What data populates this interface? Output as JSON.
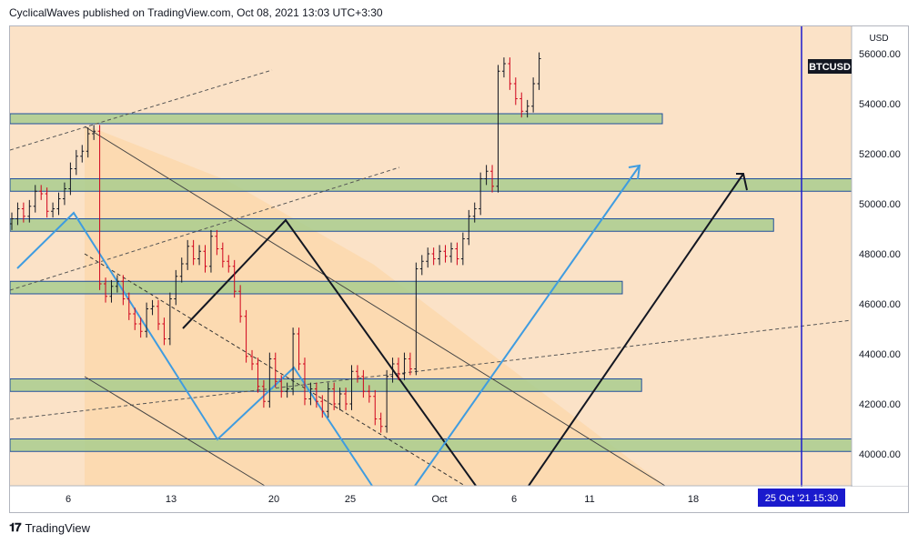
{
  "header": {
    "publish_line": "CyclicalWaves published on TradingView.com, Oct 08, 2021 13:03 UTC+3:30"
  },
  "footer": {
    "brand": "TradingView",
    "logo_icon": "tradingview-logo-icon"
  },
  "colors": {
    "background": "#fbe2c7",
    "triangle": "#fcd9ae",
    "zone_fill": "#a9cd8e",
    "zone_border": "#1f4e9c",
    "candle_up": "#131722",
    "candle_down": "#d0021b",
    "blue_line": "#3f9ce0",
    "marker_line": "#1a1acd",
    "label_bg": "#131722"
  },
  "chart_data": {
    "type": "candlestick",
    "symbol": "BTCUSD",
    "currency": "USD",
    "y_ticks": [
      "56000.00",
      "54000.00",
      "52000.00",
      "50000.00",
      "48000.00",
      "46000.00",
      "44000.00",
      "42000.00",
      "40000.00"
    ],
    "x_ticks": [
      "6",
      "13",
      "20",
      "25",
      "Oct",
      "6",
      "11",
      "18"
    ],
    "cursor_label": "25 Oct '21   15:30",
    "last_price_label": "BTCUSD",
    "candles_close": [
      49400,
      49800,
      49500,
      49900,
      50500,
      50400,
      49700,
      49800,
      50200,
      50600,
      51400,
      51900,
      52100,
      52800,
      52900,
      46800,
      46300,
      46700,
      46900,
      46200,
      45600,
      45200,
      44900,
      45800,
      45900,
      45200,
      44600,
      46200,
      47100,
      47600,
      48300,
      47800,
      48100,
      47500,
      48700,
      48200,
      47700,
      47500,
      46500,
      45500,
      43900,
      43600,
      42700,
      42100,
      43800,
      42900,
      42500,
      42600,
      44800,
      43600,
      42200,
      42600,
      42100,
      41700,
      42600,
      42000,
      42400,
      42000,
      43300,
      43100,
      42500,
      42300,
      41400,
      41100,
      43100,
      43600,
      43200,
      43800,
      43400,
      47400,
      47700,
      48000,
      47800,
      48100,
      47900,
      48200,
      47800,
      48600,
      49500,
      49800,
      51000,
      51300,
      50700,
      55300,
      55600,
      54800,
      54200,
      53700,
      53900,
      54800,
      55800
    ],
    "horizontal_zones": [
      {
        "low": 53200,
        "high": 53600,
        "right_day": 46
      },
      {
        "low": 50500,
        "high": 51000,
        "right_day": 60
      },
      {
        "low": 48900,
        "high": 49400,
        "right_day": 53.5
      },
      {
        "low": 46400,
        "high": 46900,
        "right_day": 43.3
      },
      {
        "low": 42500,
        "high": 43000,
        "right_day": 44.6
      },
      {
        "low": 40100,
        "high": 40600,
        "right_day": 60
      }
    ]
  }
}
